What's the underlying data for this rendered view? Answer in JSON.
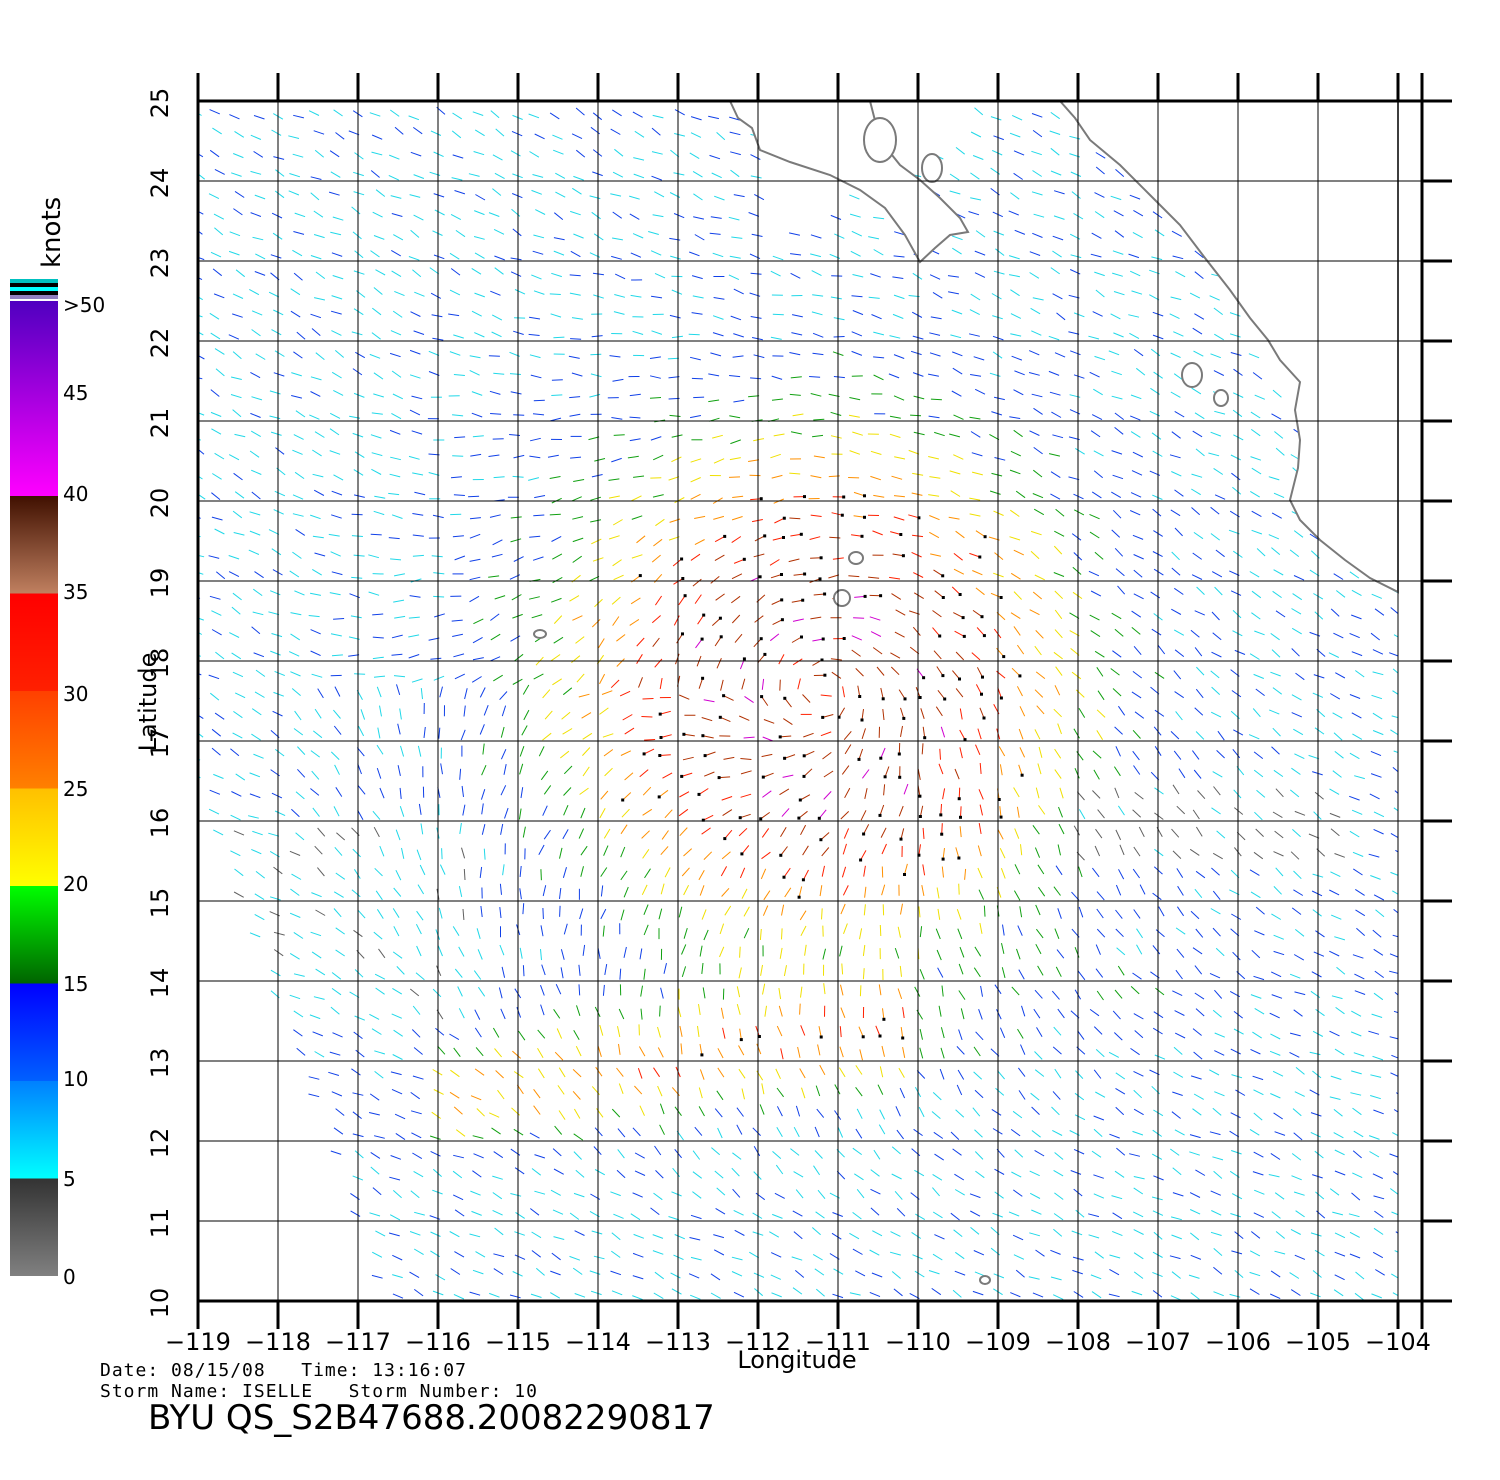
{
  "map": {
    "lon_range": [
      -119,
      -103.7
    ],
    "lat_range": [
      10,
      25
    ],
    "lon_ticks": [
      -119,
      -118,
      -117,
      -116,
      -115,
      -114,
      -113,
      -112,
      -111,
      -110,
      -109,
      -108,
      -107,
      -106,
      -105,
      -104
    ],
    "lat_ticks": [
      10,
      11,
      12,
      13,
      14,
      15,
      16,
      17,
      18,
      19,
      20,
      21,
      22,
      23,
      24,
      25
    ],
    "xlabel": "Longitude",
    "ylabel": "Latitude",
    "grid": true,
    "storm_center": {
      "lon": -111.2,
      "lat": 17.6
    },
    "land_color": "#ffffff",
    "coast_color": "#7a7a7a"
  },
  "colorbar": {
    "units": "knots",
    "labels": [
      "0",
      "5",
      "10",
      "15",
      "20",
      "25",
      "30",
      "35",
      "40",
      "45",
      ">50"
    ],
    "bins": [
      {
        "range": [
          0,
          5
        ],
        "colors": [
          "#808080",
          "#333333"
        ]
      },
      {
        "range": [
          5,
          10
        ],
        "colors": [
          "#00ffff",
          "#0080ff"
        ]
      },
      {
        "range": [
          10,
          15
        ],
        "colors": [
          "#0060ff",
          "#0000ff"
        ]
      },
      {
        "range": [
          15,
          20
        ],
        "colors": [
          "#006400",
          "#00ff00"
        ]
      },
      {
        "range": [
          20,
          25
        ],
        "colors": [
          "#ffff00",
          "#ffc000"
        ]
      },
      {
        "range": [
          25,
          30
        ],
        "colors": [
          "#ff8000",
          "#ff4000"
        ]
      },
      {
        "range": [
          30,
          35
        ],
        "colors": [
          "#ff2000",
          "#ff0000"
        ]
      },
      {
        "range": [
          35,
          40
        ],
        "colors": [
          "#c08060",
          "#401000"
        ]
      },
      {
        "range": [
          40,
          50
        ],
        "colors": [
          "#ff00ff",
          "#5000c0"
        ]
      }
    ]
  },
  "footer": {
    "date_line": "Date: 08/15/08   Time: 13:16:07",
    "storm_line": "Storm Name: ISELLE   Storm Number: 10",
    "file_id": "BYU QS_S2B47688.20082290817"
  }
}
